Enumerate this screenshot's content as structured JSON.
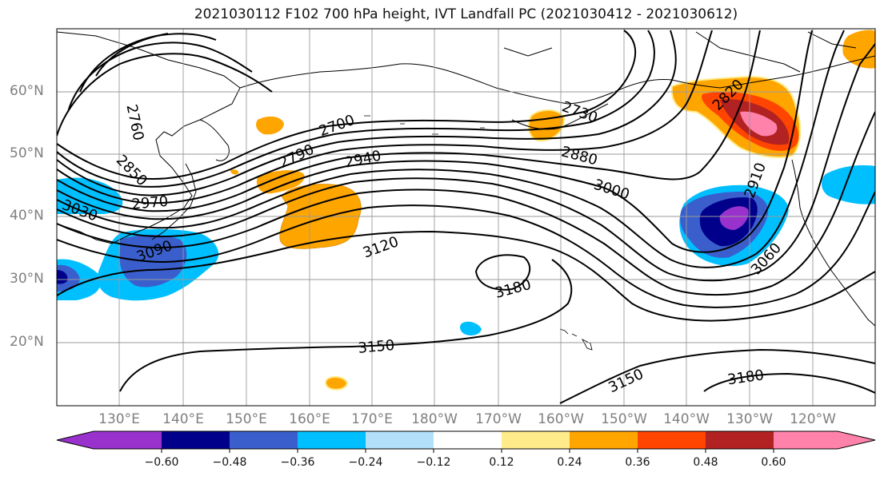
{
  "title": "2021030112 F102 700 hPa height, IVT Landfall PC (2021030412 - 2021030612)",
  "map": {
    "lat_labels": [
      "60°N",
      "50°N",
      "40°N",
      "30°N",
      "20°N"
    ],
    "lon_labels": [
      "130°E",
      "140°E",
      "150°E",
      "160°E",
      "170°E",
      "180°W",
      "170°W",
      "160°W",
      "150°W",
      "140°W",
      "130°W",
      "120°W"
    ],
    "contour_labels": [
      "2760",
      "2850",
      "2970",
      "3030",
      "3090",
      "2790",
      "2700",
      "2940",
      "2730",
      "2880",
      "3000",
      "2820",
      "2910",
      "3060",
      "3120",
      "3180",
      "3150",
      "3150",
      "3180"
    ],
    "shading_field": "IVT Landfall PC",
    "contour_field": "700 hPa height",
    "contour_color": "#000000"
  },
  "colorbar": {
    "colors": [
      "#9932cc",
      "#00008b",
      "#3a5fcd",
      "#00bfff",
      "#b2e0fa",
      "#ffffff",
      "#ffeb8a",
      "#ffa500",
      "#ff4500",
      "#b22222",
      "#ff82ab"
    ],
    "tick_labels": [
      "−0.60",
      "−0.48",
      "−0.36",
      "−0.24",
      "−0.12",
      "0.12",
      "0.24",
      "0.36",
      "0.48",
      "0.60"
    ]
  }
}
